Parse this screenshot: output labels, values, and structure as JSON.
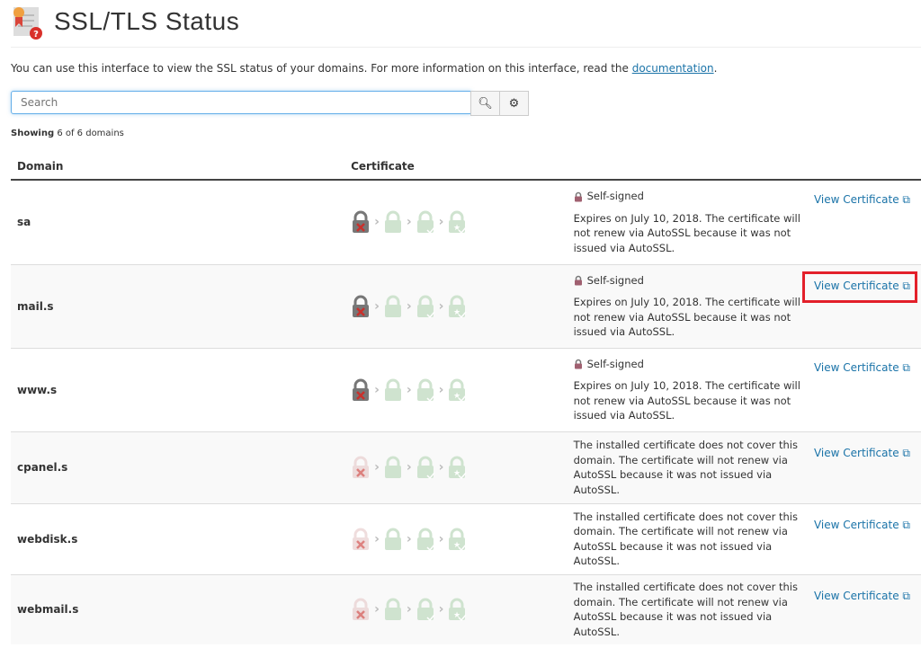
{
  "header": {
    "title": "SSL/TLS Status",
    "icon": "certificate-question-icon"
  },
  "intro": {
    "text": "You can use this interface to view the SSL status of your domains. For more information on this interface, read the ",
    "link": "documentation",
    "end": "."
  },
  "search": {
    "placeholder": "Search",
    "value": ""
  },
  "showing": {
    "bold": "Showing",
    "rest": " 6 of 6 domains"
  },
  "table": {
    "columns": [
      "Domain",
      "Certificate"
    ],
    "rows": [
      {
        "domain": "sa",
        "self_signed": "Self-signed",
        "status": "Expires on July 10, 2018. The certificate will not renew via AutoSSL because it was not issued via AutoSSL.",
        "link": "View Certificate"
      },
      {
        "domain": "mail.s",
        "self_signed": "Self-signed",
        "status": "Expires on July 10, 2018. The certificate will not renew via AutoSSL because it was not issued via AutoSSL.",
        "link": "View Certificate",
        "highlighted": true
      },
      {
        "domain": "www.s",
        "self_signed": "Self-signed",
        "status": "Expires on July 10, 2018. The certificate will not renew via AutoSSL because it was not issued via AutoSSL.",
        "link": "View Certificate"
      },
      {
        "domain": "cpanel.s",
        "status": "The installed certificate does not cover this domain. The certificate will not renew via AutoSSL because it was not issued via AutoSSL.",
        "link": "View Certificate"
      },
      {
        "domain": "webdisk.s",
        "status": "The installed certificate does not cover this domain. The certificate will not renew via AutoSSL because it was not issued via AutoSSL.",
        "link": "View Certificate"
      },
      {
        "domain": "webmail.s",
        "status": "The installed certificate does not cover this domain. The certificate will not renew via AutoSSL because it was not issued via AutoSSL.",
        "link": "View Certificate"
      }
    ]
  },
  "colors": {
    "link": "#1a73a8",
    "highlight": "#e3202a",
    "lock_grey": "#777",
    "lock_green": "#cfe3cf"
  }
}
